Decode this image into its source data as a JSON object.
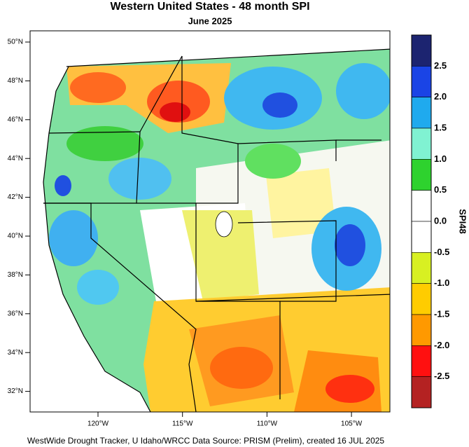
{
  "header": {
    "title": "Western United States - 48 month SPI",
    "subtitle": "June 2025"
  },
  "map": {
    "lat_labels": [
      "50°N",
      "48°N",
      "46°N",
      "44°N",
      "42°N",
      "40°N",
      "38°N",
      "36°N",
      "34°N",
      "32°N"
    ],
    "lon_labels": [
      "120°W",
      "115°W",
      "110°W",
      "105°W"
    ]
  },
  "colorbar": {
    "title": "SPI48",
    "labels": [
      "2.5",
      "2.0",
      "1.5",
      "1.0",
      "0.5",
      "0.0",
      "-0.5",
      "-1.0",
      "-1.5",
      "-2.0",
      "-2.5"
    ],
    "colors": [
      "#1c2470",
      "#1a44e6",
      "#1faaee",
      "#80f2d2",
      "#2ed22e",
      "#ffffff",
      "#ffffff",
      "#d8f022",
      "#ffcc00",
      "#ff9900",
      "#ff1010",
      "#b42222"
    ]
  },
  "footer": "WestWide Drought Tracker, U Idaho/WRCC Data Source: PRISM (Prelim), created 16 JUL 2025"
}
